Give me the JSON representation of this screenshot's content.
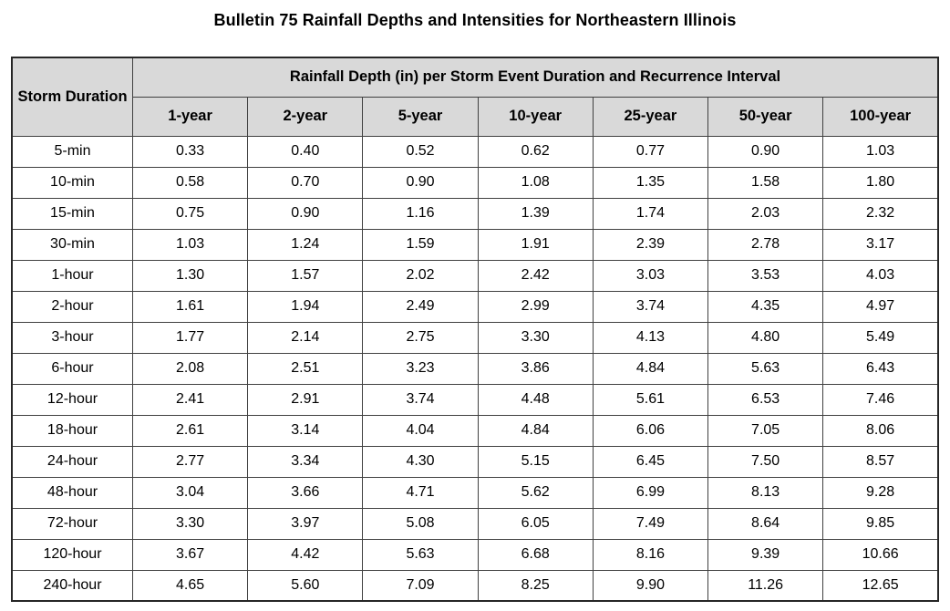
{
  "title": "Bulletin 75 Rainfall Depths and Intensities for Northeastern Illinois",
  "colors": {
    "header_bg": "#d9d9d9",
    "border": "#404040",
    "text": "#000000",
    "background": "#ffffff"
  },
  "chart_data": {
    "type": "table",
    "title": "Bulletin 75 Rainfall Depths and Intensities for Northeastern Illinois",
    "row_header": "Storm Duration",
    "span_header": "Rainfall Depth (in) per Storm Event Duration and Recurrence Interval",
    "columns": [
      "1-year",
      "2-year",
      "5-year",
      "10-year",
      "25-year",
      "50-year",
      "100-year"
    ],
    "rows": [
      {
        "duration": "5-min",
        "values": [
          "0.33",
          "0.40",
          "0.52",
          "0.62",
          "0.77",
          "0.90",
          "1.03"
        ]
      },
      {
        "duration": "10-min",
        "values": [
          "0.58",
          "0.70",
          "0.90",
          "1.08",
          "1.35",
          "1.58",
          "1.80"
        ]
      },
      {
        "duration": "15-min",
        "values": [
          "0.75",
          "0.90",
          "1.16",
          "1.39",
          "1.74",
          "2.03",
          "2.32"
        ]
      },
      {
        "duration": "30-min",
        "values": [
          "1.03",
          "1.24",
          "1.59",
          "1.91",
          "2.39",
          "2.78",
          "3.17"
        ]
      },
      {
        "duration": "1-hour",
        "values": [
          "1.30",
          "1.57",
          "2.02",
          "2.42",
          "3.03",
          "3.53",
          "4.03"
        ]
      },
      {
        "duration": "2-hour",
        "values": [
          "1.61",
          "1.94",
          "2.49",
          "2.99",
          "3.74",
          "4.35",
          "4.97"
        ]
      },
      {
        "duration": "3-hour",
        "values": [
          "1.77",
          "2.14",
          "2.75",
          "3.30",
          "4.13",
          "4.80",
          "5.49"
        ]
      },
      {
        "duration": "6-hour",
        "values": [
          "2.08",
          "2.51",
          "3.23",
          "3.86",
          "4.84",
          "5.63",
          "6.43"
        ]
      },
      {
        "duration": "12-hour",
        "values": [
          "2.41",
          "2.91",
          "3.74",
          "4.48",
          "5.61",
          "6.53",
          "7.46"
        ]
      },
      {
        "duration": "18-hour",
        "values": [
          "2.61",
          "3.14",
          "4.04",
          "4.84",
          "6.06",
          "7.05",
          "8.06"
        ]
      },
      {
        "duration": "24-hour",
        "values": [
          "2.77",
          "3.34",
          "4.30",
          "5.15",
          "6.45",
          "7.50",
          "8.57"
        ]
      },
      {
        "duration": "48-hour",
        "values": [
          "3.04",
          "3.66",
          "4.71",
          "5.62",
          "6.99",
          "8.13",
          "9.28"
        ]
      },
      {
        "duration": "72-hour",
        "values": [
          "3.30",
          "3.97",
          "5.08",
          "6.05",
          "7.49",
          "8.64",
          "9.85"
        ]
      },
      {
        "duration": "120-hour",
        "values": [
          "3.67",
          "4.42",
          "5.63",
          "6.68",
          "8.16",
          "9.39",
          "10.66"
        ]
      },
      {
        "duration": "240-hour",
        "values": [
          "4.65",
          "5.60",
          "7.09",
          "8.25",
          "9.90",
          "11.26",
          "12.65"
        ]
      }
    ]
  }
}
